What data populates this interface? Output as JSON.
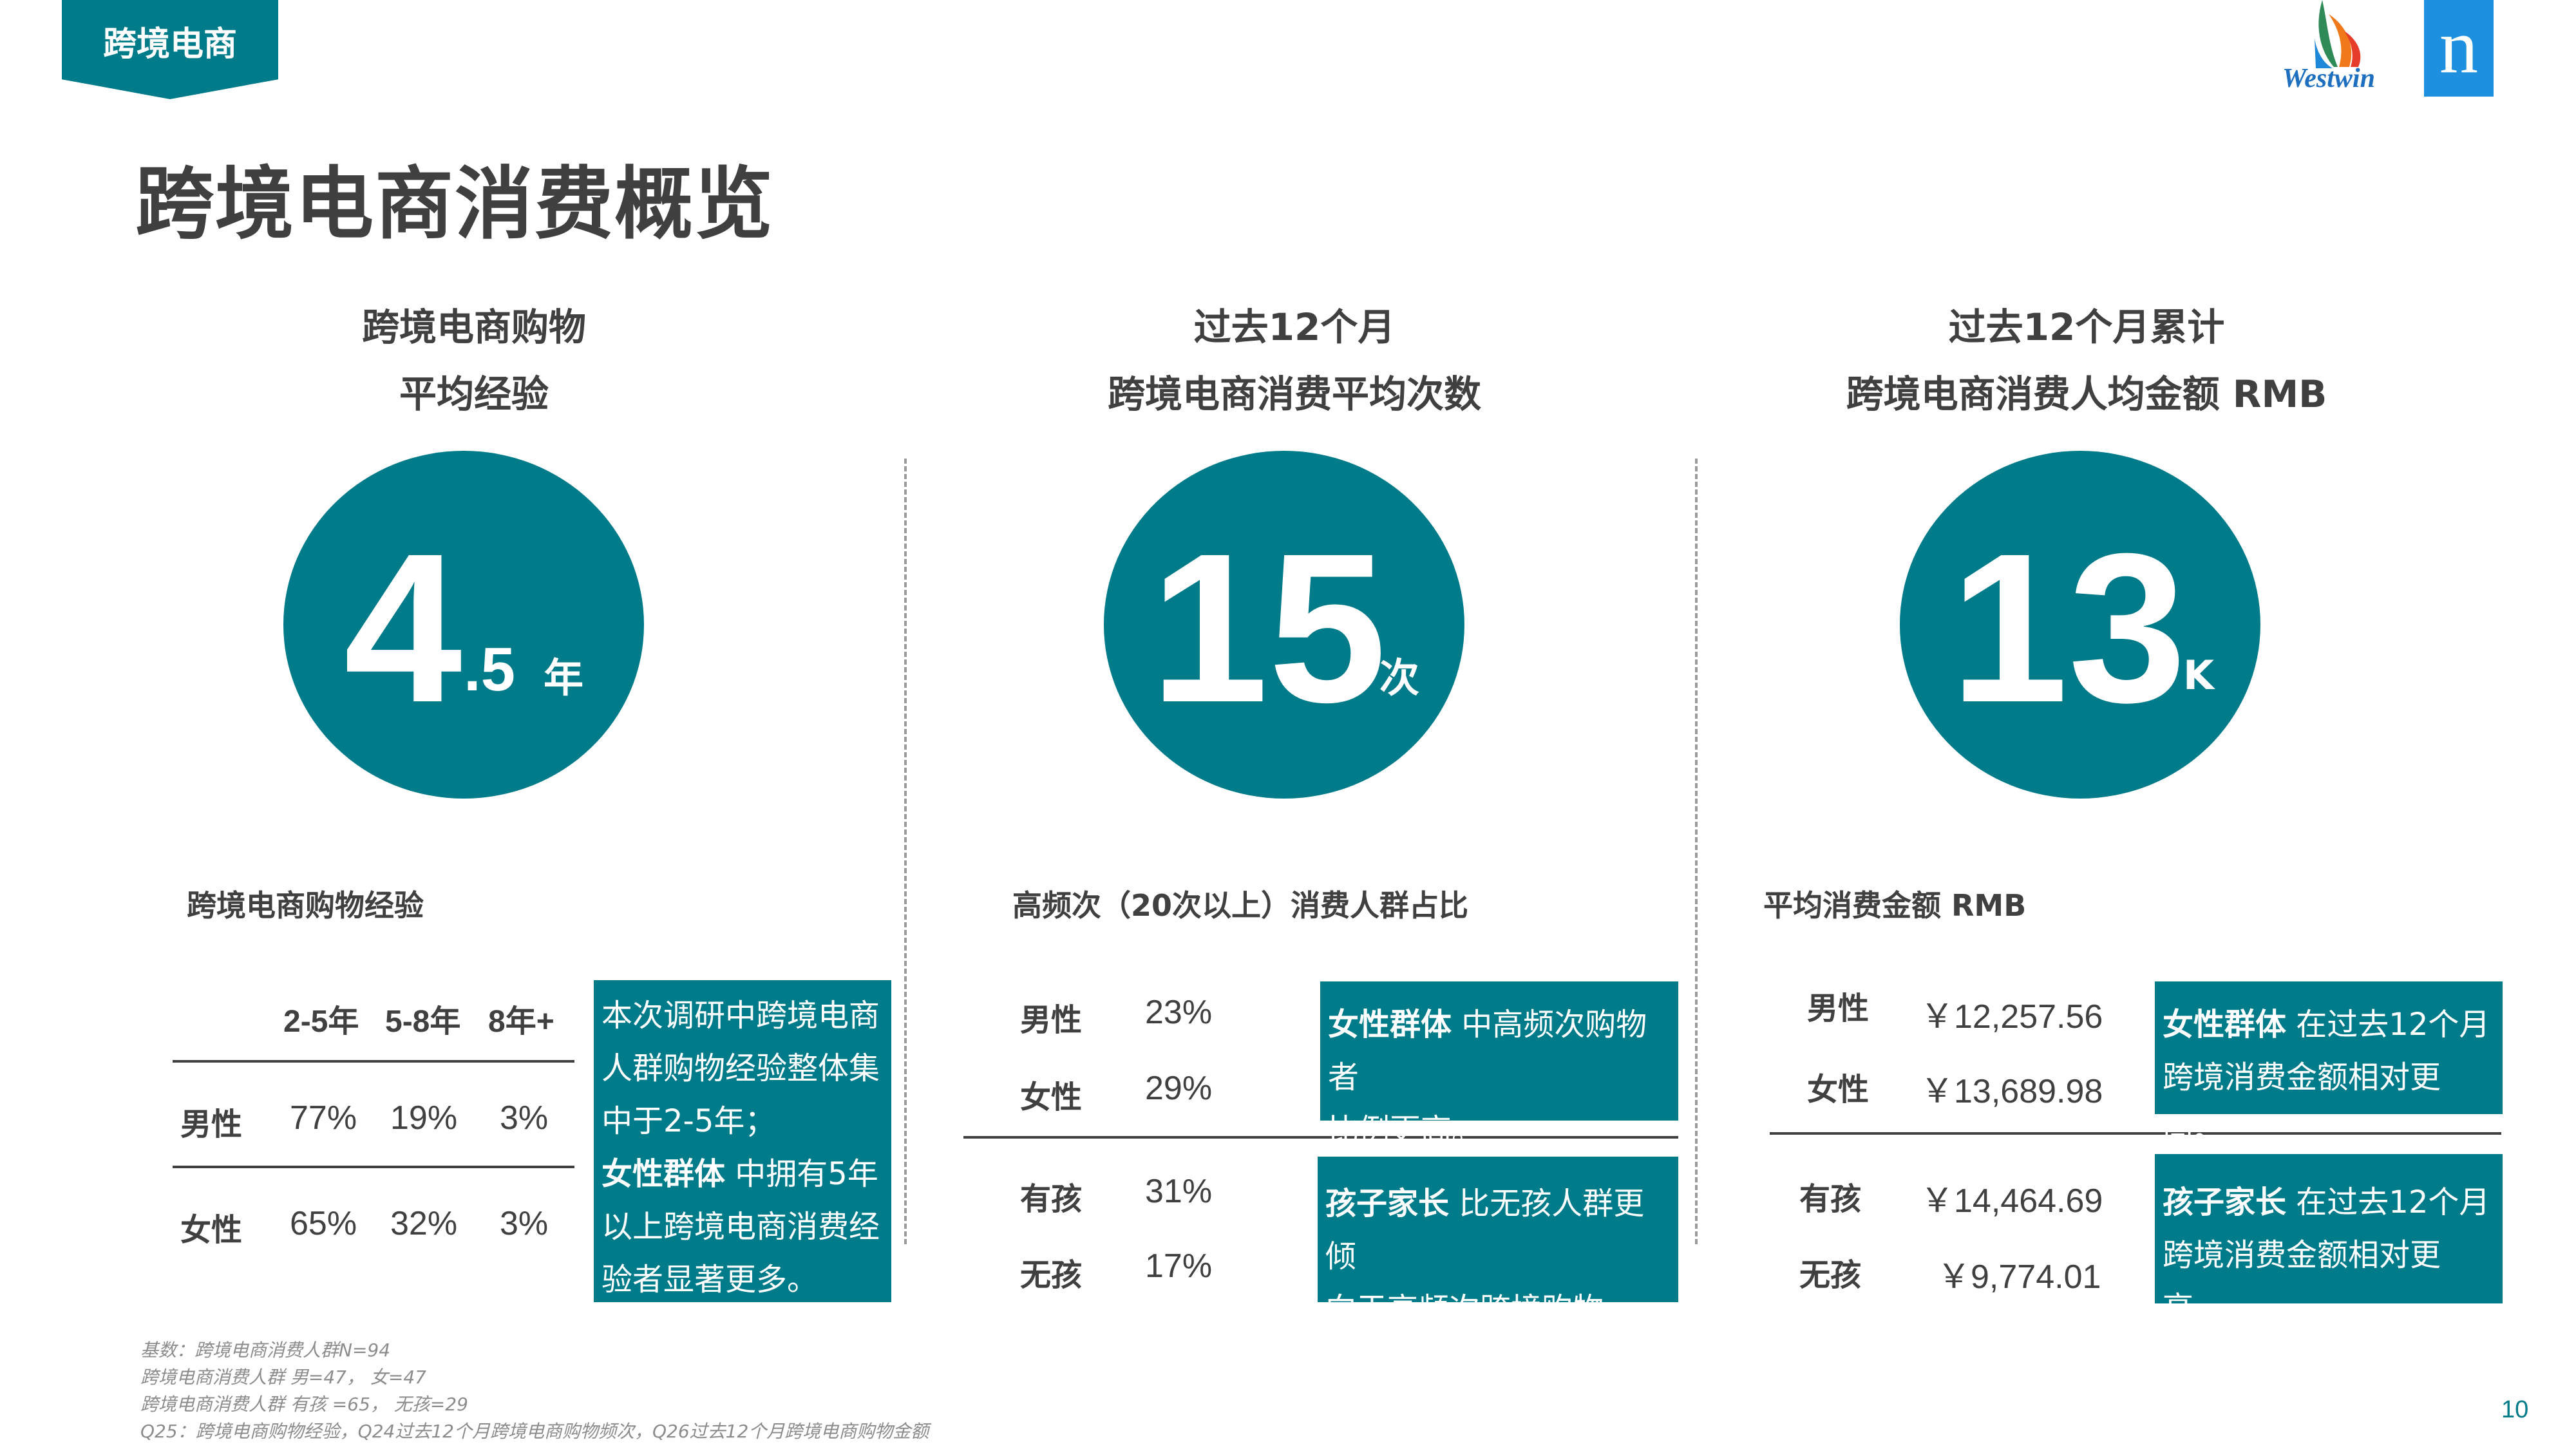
{
  "section_tab": "跨境电商",
  "page_title": "跨境电商消费概览",
  "logos": {
    "westwin_text": "Westwin",
    "brand_letter": "n"
  },
  "columns": [
    {
      "heading_line1": "跨境电商购物",
      "heading_line2": "平均经验",
      "big_number": "4",
      "small_number": ".5",
      "unit": "年",
      "subtitle": "跨境电商购物经验",
      "table": {
        "headers": [
          "2-5年",
          "5-8年",
          "8年+"
        ],
        "rows": [
          {
            "label": "男性",
            "values": [
              "77%",
              "19%",
              "3%"
            ]
          },
          {
            "label": "女性",
            "values": [
              "65%",
              "32%",
              "3%"
            ]
          }
        ]
      },
      "note": {
        "line1": "本次调研中跨境电商",
        "line2": "人群购物经验整体集",
        "line3": "中于2-5年；",
        "line4_bold": "女性群体",
        "line4_rest": " 中拥有5年",
        "line5": "以上跨境电商消费经",
        "line6": "验者显著更多。"
      }
    },
    {
      "heading_line1": "过去12个月",
      "heading_line2": "跨境电商消费平均次数",
      "big_number": "15",
      "unit": "次",
      "subtitle": "高频次（20次以上）消费人群占比",
      "rows": [
        {
          "label": "男性",
          "value": "23%"
        },
        {
          "label": "女性",
          "value": "29%"
        },
        {
          "label": "有孩",
          "value": "31%"
        },
        {
          "label": "无孩",
          "value": "17%"
        }
      ],
      "note_gender": {
        "bold": "女性群体",
        "rest_line1": "  中高频次购物者",
        "line2": "比例更高。"
      },
      "note_kids": {
        "bold": "孩子家长",
        "rest_line1": "  比无孩人群更倾",
        "line2": "向于高频次跨境购物。"
      }
    },
    {
      "heading_line1": "过去12个月累计",
      "heading_line2": "跨境电商消费人均金额 RMB",
      "big_number": "13",
      "unit": "K",
      "subtitle": "平均消费金额 RMB",
      "rows": [
        {
          "label": "男性",
          "value": "￥12,257.56"
        },
        {
          "label": "女性",
          "value": "￥13,689.98"
        },
        {
          "label": "有孩",
          "value": "￥14,464.69"
        },
        {
          "label": "无孩",
          "value": "￥9,774.01"
        }
      ],
      "note_gender": {
        "bold": "女性群体",
        "rest_line1": "  在过去12个月",
        "line2": "跨境消费金额相对更高。"
      },
      "note_kids": {
        "bold": "孩子家长",
        "rest_line1": "  在过去12个月",
        "line2": "跨境消费金额相对更高。"
      }
    }
  ],
  "footnotes": [
    "基数：跨境电商消费人群N=94",
    "跨境电商消费人群 男=47， 女=47",
    "跨境电商消费人群 有孩 =65， 无孩=29",
    "Q25：跨境电商购物经验，Q24过去12个月跨境电商购物频次，Q26过去12个月跨境电商购物金额"
  ],
  "page_number": "10",
  "colors": {
    "accent": "#007b8a",
    "text": "#404040"
  }
}
